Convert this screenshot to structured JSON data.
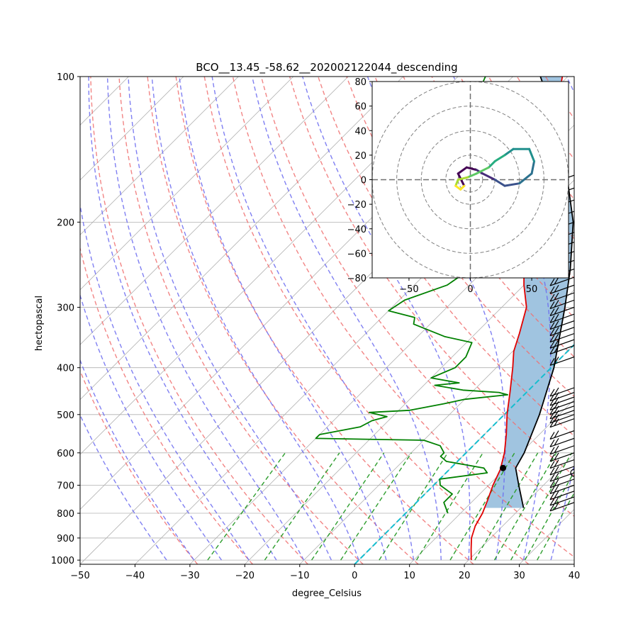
{
  "chart_data": [
    {
      "type": "line",
      "subtype": "skew-T log-P diagram",
      "title": "BCO__13.45_-58.62__202002122044_descending",
      "xlabel": "degree_Celsius",
      "ylabel": "hectopascal",
      "xlim": [
        -50,
        40
      ],
      "ylim": [
        1020,
        100
      ],
      "y_scale": "log",
      "grid": true,
      "x_ticks": [
        -50,
        -40,
        -30,
        -20,
        -10,
        0,
        10,
        20,
        30,
        40
      ],
      "y_ticks": [
        100,
        200,
        300,
        400,
        500,
        600,
        700,
        800,
        900,
        1000
      ],
      "colors": {
        "temperature": "#e00000",
        "dewpoint": "#008000",
        "parcel": "#000000",
        "cape_fill": "#a0c4e0",
        "dry_adiabats": "#f07070",
        "moist_adiabats": "#6a6af0",
        "mixing_ratio": "#2e9e2e",
        "freezing_isotherm": "#17becf"
      },
      "series": [
        {
          "key": "temperature",
          "points": [
            [
              1000,
              20.5
            ],
            [
              950,
              18.5
            ],
            [
              900,
              16.5
            ],
            [
              850,
              15.0
            ],
            [
              800,
              14.0
            ],
            [
              750,
              12.5
            ],
            [
              700,
              10.8
            ],
            [
              650,
              9.3
            ],
            [
              600,
              7.0
            ],
            [
              550,
              4.0
            ],
            [
              500,
              0.5
            ],
            [
              450,
              -3.0
            ],
            [
              400,
              -7.0
            ],
            [
              370,
              -9.8
            ],
            [
              340,
              -12.0
            ],
            [
              300,
              -15.5
            ],
            [
              270,
              -20.0
            ],
            [
              240,
              -24.5
            ],
            [
              210,
              -29.0
            ],
            [
              180,
              -33.5
            ],
            [
              160,
              -36.0
            ],
            [
              140,
              -40.0
            ],
            [
              130,
              -42.5
            ],
            [
              120,
              -45.0
            ],
            [
              110,
              -48.0
            ],
            [
              100,
              -51.0
            ]
          ]
        },
        {
          "key": "dewpoint",
          "points": [
            [
              800,
              7.7
            ],
            [
              760,
              5.0
            ],
            [
              730,
              5.0
            ],
            [
              700,
              1.2
            ],
            [
              680,
              0.0
            ],
            [
              660,
              7.5
            ],
            [
              645,
              6.0
            ],
            [
              625,
              -2.0
            ],
            [
              610,
              -4.0
            ],
            [
              600,
              -4.0
            ],
            [
              580,
              -6.0
            ],
            [
              565,
              -10.0
            ],
            [
              560,
              -30.0
            ],
            [
              550,
              -30.0
            ],
            [
              530,
              -24.0
            ],
            [
              515,
              -23.0
            ],
            [
              505,
              -21.0
            ],
            [
              495,
              -25.0
            ],
            [
              490,
              -18.0
            ],
            [
              475,
              -13.0
            ],
            [
              465,
              -10.0
            ],
            [
              455,
              -3.0
            ],
            [
              450,
              -5.0
            ],
            [
              445,
              -12.0
            ],
            [
              435,
              -18.0
            ],
            [
              430,
              -14.0
            ],
            [
              420,
              -20.0
            ],
            [
              400,
              -17.5
            ],
            [
              380,
              -17.5
            ],
            [
              355,
              -19.0
            ],
            [
              345,
              -25.0
            ],
            [
              325,
              -33.0
            ],
            [
              315,
              -34.0
            ],
            [
              305,
              -40.0
            ],
            [
              290,
              -39.0
            ],
            [
              270,
              -34.0
            ],
            [
              255,
              -33.0
            ],
            [
              245,
              -34.0
            ],
            [
              235,
              -38.0
            ],
            [
              225,
              -40.0
            ],
            [
              210,
              -41.0
            ],
            [
              200,
              -44.5
            ],
            [
              190,
              -44.0
            ],
            [
              180,
              -46.0
            ],
            [
              170,
              -47.0
            ],
            [
              160,
              -48.0
            ],
            [
              152,
              -49.0
            ],
            [
              145,
              -51.0
            ],
            [
              140,
              -58.0
            ],
            [
              130,
              -58.0
            ],
            [
              120,
              -58.0
            ],
            [
              115,
              -61.0
            ],
            [
              110,
              -63.0
            ],
            [
              100,
              -65.0
            ]
          ]
        },
        {
          "key": "parcel",
          "points": [
            [
              780,
              20.5
            ],
            [
              700,
              15.5
            ],
            [
              645,
              11.8
            ],
            [
              600,
              10.6
            ],
            [
              500,
              6.4
            ],
            [
              400,
              0.5
            ],
            [
              300,
              -8.5
            ],
            [
              250,
              -14.5
            ],
            [
              200,
              -22.5
            ],
            [
              150,
              -35.0
            ],
            [
              120,
              -45.5
            ],
            [
              100,
              -55.0
            ]
          ]
        }
      ],
      "lcl": {
        "pressure": 645,
        "temperature": 9.5
      },
      "hodograph": {
        "xlim": [
          -80,
          80
        ],
        "ylim": [
          -80,
          80
        ],
        "x_ticks": [
          -50,
          0,
          50
        ],
        "y_ticks": [
          -80,
          -60,
          -40,
          -20,
          0,
          20,
          40,
          60,
          80
        ],
        "rings": [
          10,
          20,
          40,
          60,
          80
        ],
        "colormap": "viridis",
        "u": [
          -5,
          -10,
          -3,
          5,
          10,
          20,
          28,
          40,
          50,
          52,
          48,
          35,
          28,
          20,
          15,
          5,
          -2,
          -10,
          -12,
          -8,
          -5
        ],
        "v": [
          -5,
          5,
          10,
          8,
          5,
          0,
          -5,
          -3,
          5,
          15,
          25,
          25,
          20,
          15,
          10,
          5,
          2,
          0,
          -5,
          -8,
          -5
        ]
      },
      "wind_barbs_shown": true
    }
  ]
}
